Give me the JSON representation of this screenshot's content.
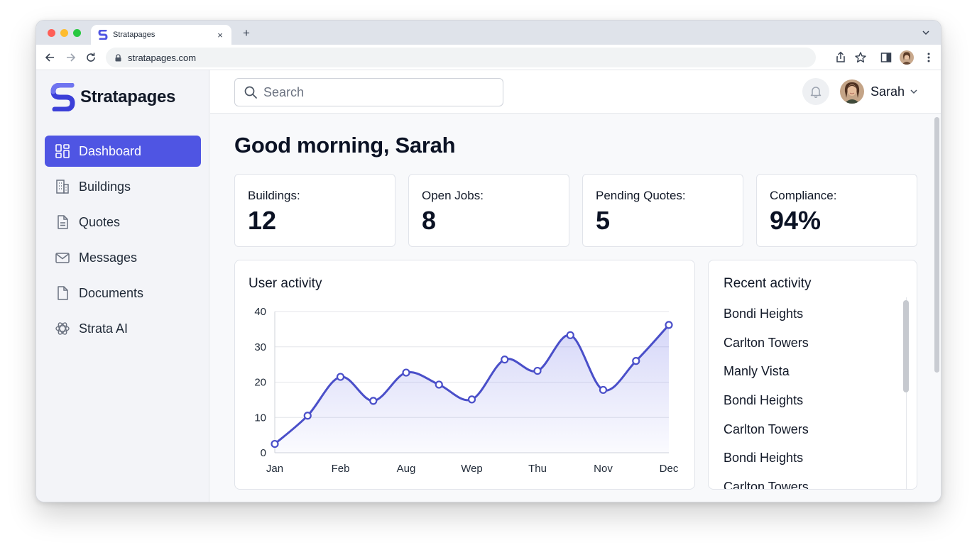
{
  "browser": {
    "tab_title": "Stratapages",
    "url": "stratapages.com",
    "new_tab_label": "+",
    "close_tab_label": "×"
  },
  "brand": {
    "name": "Stratapages",
    "color": "#4f55e3"
  },
  "sidebar": {
    "items": [
      {
        "label": "Dashboard",
        "icon": "dashboard-icon",
        "active": true
      },
      {
        "label": "Buildings",
        "icon": "building-icon",
        "active": false
      },
      {
        "label": "Quotes",
        "icon": "quote-document-icon",
        "active": false
      },
      {
        "label": "Messages",
        "icon": "envelope-icon",
        "active": false
      },
      {
        "label": "Documents",
        "icon": "document-icon",
        "active": false
      },
      {
        "label": "Strata AI",
        "icon": "ai-swirl-icon",
        "active": false
      }
    ]
  },
  "topbar": {
    "search_placeholder": "Search",
    "user_name": "Sarah"
  },
  "main": {
    "greeting": "Good morning, Sarah",
    "stats": [
      {
        "label": "Buildings:",
        "value": "12"
      },
      {
        "label": "Open Jobs:",
        "value": "8"
      },
      {
        "label": "Pending Quotes:",
        "value": "5"
      },
      {
        "label": "Compliance:",
        "value": "94%"
      }
    ]
  },
  "chart_data": {
    "type": "line",
    "title": "User activity",
    "categories": [
      "Jan",
      "Feb",
      "Aug",
      "Wep",
      "Thu",
      "Nov",
      "Dec"
    ],
    "x": [
      0,
      1,
      2,
      3,
      4,
      5,
      6,
      7,
      8,
      9,
      10,
      11,
      12
    ],
    "values": [
      2.5,
      10.5,
      21.5,
      14.7,
      22.7,
      19.3,
      15.1,
      26.4,
      23.2,
      33.3,
      17.8,
      26,
      36.2
    ],
    "ylim": [
      0,
      40
    ],
    "yticks": [
      0,
      10,
      20,
      30,
      40
    ],
    "grid": true,
    "line_color": "#4a4fc9"
  },
  "activity": {
    "title": "Recent activity",
    "items": [
      "Bondi Heights",
      "Carlton Towers",
      "Manly Vista",
      "Bondi Heights",
      "Carlton Towers",
      "Bondi Heights",
      "Carlton Towers"
    ]
  }
}
